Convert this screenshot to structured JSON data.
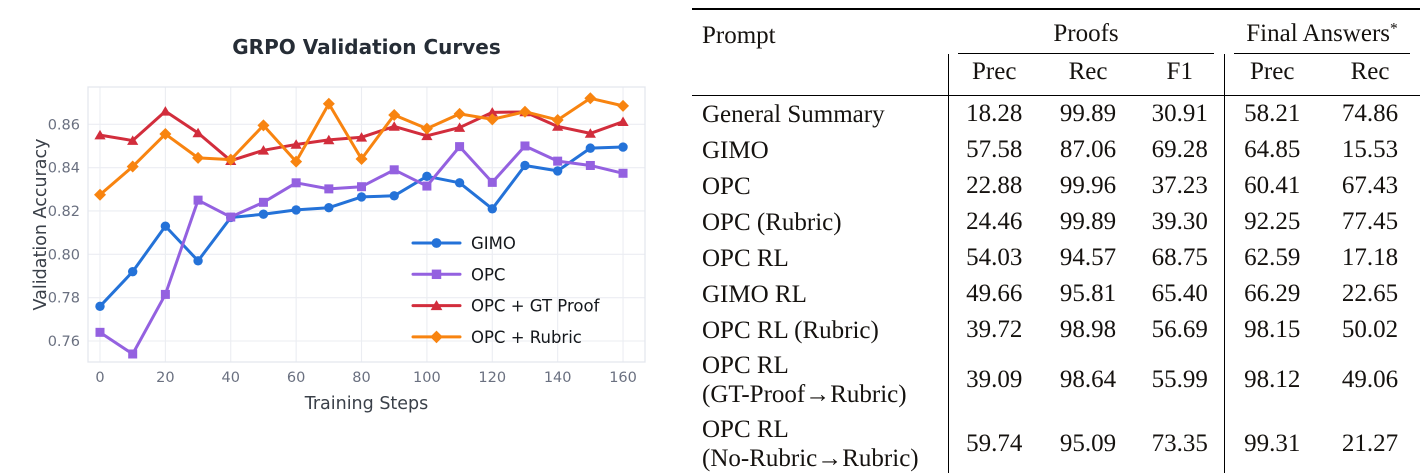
{
  "chart_data": [
    {
      "type": "line",
      "title": "GRPO Validation Curves",
      "xlabel": "Training Steps",
      "ylabel": "Validation Accuracy",
      "x": [
        0,
        10,
        20,
        30,
        40,
        50,
        60,
        70,
        80,
        90,
        100,
        110,
        120,
        130,
        140,
        150,
        160
      ],
      "xticks": [
        0,
        20,
        40,
        60,
        80,
        100,
        120,
        140,
        160
      ],
      "yticks": [
        0.76,
        0.78,
        0.8,
        0.82,
        0.84,
        0.86
      ],
      "xlim": [
        -4,
        167
      ],
      "ylim": [
        0.75,
        0.877
      ],
      "grid": true,
      "legend_position": "inside-center-right",
      "colors": {
        "grid": "#ebedf2",
        "spine": "#e4e7ee",
        "tick_label": "#6a7080",
        "axis_label": "#3a4049",
        "title": "#262d36"
      },
      "series": [
        {
          "name": "GIMO",
          "color": "#2472d8",
          "marker": "circle",
          "values": [
            0.776,
            0.792,
            0.813,
            0.797,
            0.817,
            0.8185,
            0.8205,
            0.8215,
            0.8265,
            0.827,
            0.836,
            0.833,
            0.821,
            0.841,
            0.8385,
            0.849,
            0.8495
          ]
        },
        {
          "name": "OPC",
          "color": "#9461e0",
          "marker": "square",
          "values": [
            0.764,
            0.754,
            0.7815,
            0.825,
            0.8172,
            0.824,
            0.833,
            0.8302,
            0.8312,
            0.839,
            0.8315,
            0.8497,
            0.8332,
            0.85,
            0.843,
            0.841,
            0.8374
          ]
        },
        {
          "name": "OPC + GT Proof",
          "color": "#d22d3c",
          "marker": "triangle",
          "values": [
            0.855,
            0.8525,
            0.866,
            0.856,
            0.8432,
            0.848,
            0.8507,
            0.8528,
            0.854,
            0.859,
            0.8547,
            0.8585,
            0.8655,
            0.8657,
            0.859,
            0.8558,
            0.8612
          ]
        },
        {
          "name": "OPC + Rubric",
          "color": "#f88410",
          "marker": "diamond",
          "values": [
            0.8275,
            0.8405,
            0.8555,
            0.8445,
            0.8437,
            0.8595,
            0.8428,
            0.8695,
            0.844,
            0.8643,
            0.858,
            0.8648,
            0.8623,
            0.8658,
            0.862,
            0.872,
            0.8685
          ]
        }
      ]
    },
    {
      "type": "table",
      "col_groups": [
        {
          "label": "Prompt",
          "cols": []
        },
        {
          "label": "Proofs",
          "cols": [
            "Prec",
            "Rec",
            "F1"
          ]
        },
        {
          "label": "Final Answers",
          "sup": "*",
          "cols": [
            "Prec",
            "Rec"
          ]
        }
      ],
      "rows": [
        {
          "prompt": [
            "General Summary"
          ],
          "values": [
            18.28,
            99.89,
            30.91,
            58.21,
            74.86
          ]
        },
        {
          "prompt": [
            "GIMO"
          ],
          "values": [
            57.58,
            87.06,
            69.28,
            64.85,
            15.53
          ]
        },
        {
          "prompt": [
            "OPC"
          ],
          "values": [
            22.88,
            99.96,
            37.23,
            60.41,
            67.43
          ]
        },
        {
          "prompt": [
            "OPC (Rubric)"
          ],
          "values": [
            24.46,
            99.89,
            39.3,
            92.25,
            77.45
          ]
        },
        {
          "prompt": [
            "OPC RL"
          ],
          "values": [
            54.03,
            94.57,
            68.75,
            62.59,
            17.18
          ]
        },
        {
          "prompt": [
            "GIMO RL"
          ],
          "values": [
            49.66,
            95.81,
            65.4,
            66.29,
            22.65
          ]
        },
        {
          "prompt": [
            "OPC RL (Rubric)"
          ],
          "values": [
            39.72,
            98.98,
            56.69,
            98.15,
            50.02
          ]
        },
        {
          "prompt": [
            "OPC RL",
            "(GT-Proof→Rubric)"
          ],
          "values": [
            39.09,
            98.64,
            55.99,
            98.12,
            49.06
          ]
        },
        {
          "prompt": [
            "OPC RL",
            "(No-Rubric→Rubric)"
          ],
          "values": [
            59.74,
            95.09,
            73.35,
            99.31,
            21.27
          ]
        }
      ]
    }
  ]
}
